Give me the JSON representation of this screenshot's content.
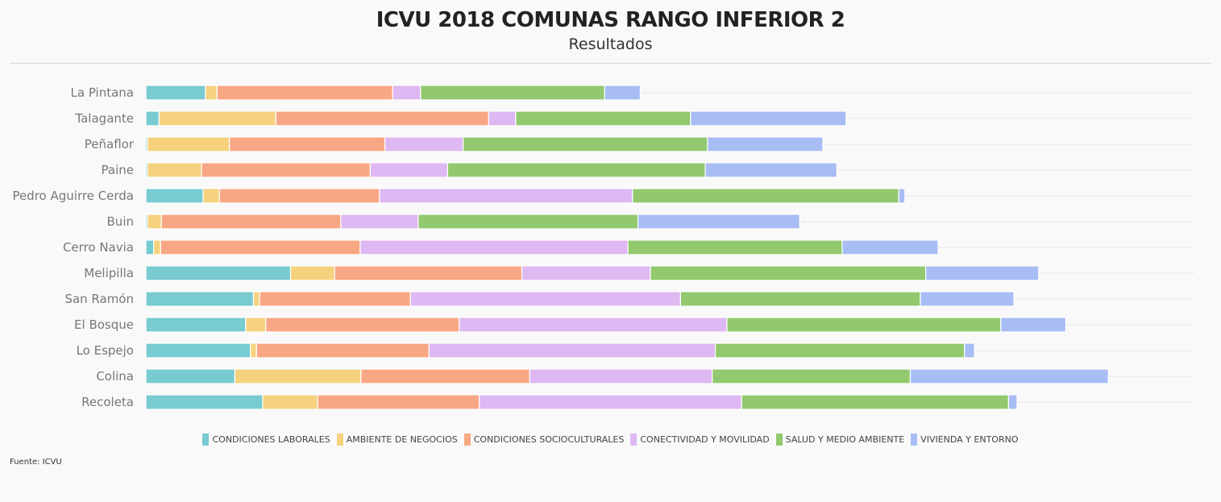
{
  "title": "ICVU 2018 COMUNAS RANGO INFERIOR 2",
  "subtitle": "Resultados",
  "source": "Fuente: ICVU",
  "chart_data": {
    "type": "bar",
    "orientation": "horizontal",
    "stacked": true,
    "grid": true,
    "legend_position": "bottom",
    "categories": [
      "La Pintana",
      "Talagante",
      "Peñaflor",
      "Paine",
      "Pedro Aguirre Cerda",
      "Buin",
      "Cerro Navia",
      "Melipilla",
      "San Ramón",
      "El Bosque",
      "Lo Espejo",
      "Colina",
      "Recoleta"
    ],
    "series": [
      {
        "name": "CONDICIONES LABORALES",
        "color": "#78cbd0",
        "values": [
          7.7,
          1.7,
          0.2,
          0.2,
          7.4,
          0.2,
          1.0,
          18.7,
          13.9,
          12.9,
          13.5,
          11.5,
          15.1
        ]
      },
      {
        "name": "AMBIENTE DE NEGOCIOS",
        "color": "#f6d27e",
        "values": [
          1.5,
          15.1,
          10.6,
          7.0,
          2.1,
          1.8,
          0.9,
          5.7,
          0.8,
          2.6,
          0.8,
          16.3,
          7.1
        ]
      },
      {
        "name": "CONDICIONES SOCIOCULTURALES",
        "color": "#f8a784",
        "values": [
          22.7,
          27.5,
          20.1,
          21.8,
          20.7,
          23.2,
          25.8,
          24.2,
          19.5,
          25.0,
          22.3,
          21.8,
          20.9
        ]
      },
      {
        "name": "CONECTIVIDAD Y MOVILIDAD",
        "color": "#deb8f2",
        "values": [
          3.6,
          3.5,
          10.1,
          10.0,
          32.7,
          10.0,
          34.6,
          16.6,
          34.9,
          34.6,
          37.0,
          23.6,
          33.9
        ]
      },
      {
        "name": "SALUD Y MEDIO AMBIENTE",
        "color": "#92c96f",
        "values": [
          23.8,
          22.6,
          31.6,
          33.3,
          34.4,
          28.4,
          27.7,
          35.6,
          31.0,
          35.4,
          32.2,
          25.6,
          34.5
        ]
      },
      {
        "name": "VIVIENDA Y ENTORNO",
        "color": "#a8bdf3",
        "values": [
          4.6,
          20.1,
          14.9,
          17.0,
          0.8,
          20.9,
          12.4,
          14.6,
          12.1,
          8.4,
          1.3,
          25.6,
          1.1
        ]
      }
    ],
    "xlim": [
      0,
      130
    ]
  }
}
